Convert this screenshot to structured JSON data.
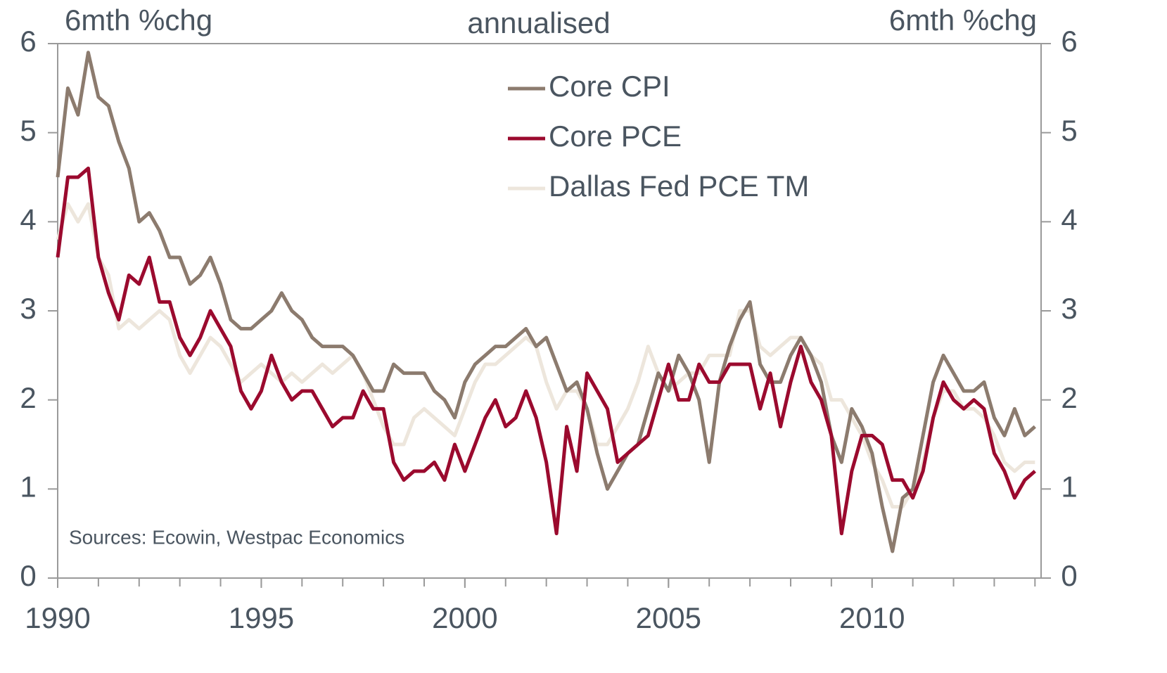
{
  "chart_data": {
    "type": "line",
    "title": "annualised",
    "y_label": "6mth %chg",
    "y2_label": "6mth %chg",
    "annotation": "Sources: Ecowin, Westpac Economics",
    "x": [
      1990,
      1990.25,
      1990.5,
      1990.75,
      1991,
      1991.25,
      1991.5,
      1991.75,
      1992,
      1992.25,
      1992.5,
      1992.75,
      1993,
      1993.25,
      1993.5,
      1993.75,
      1994,
      1994.25,
      1994.5,
      1994.75,
      1995,
      1995.25,
      1995.5,
      1995.75,
      1996,
      1996.25,
      1996.5,
      1996.75,
      1997,
      1997.25,
      1997.5,
      1997.75,
      1998,
      1998.25,
      1998.5,
      1998.75,
      1999,
      1999.25,
      1999.5,
      1999.75,
      2000,
      2000.25,
      2000.5,
      2000.75,
      2001,
      2001.25,
      2001.5,
      2001.75,
      2002,
      2002.25,
      2002.5,
      2002.75,
      2003,
      2003.25,
      2003.5,
      2003.75,
      2004,
      2004.25,
      2004.5,
      2004.75,
      2005,
      2005.25,
      2005.5,
      2005.75,
      2006,
      2006.25,
      2006.5,
      2006.75,
      2007,
      2007.25,
      2007.5,
      2007.75,
      2008,
      2008.25,
      2008.5,
      2008.75,
      2009,
      2009.25,
      2009.5,
      2009.75,
      2010,
      2010.25,
      2010.5,
      2010.75,
      2011,
      2011.25,
      2011.5,
      2011.75,
      2012,
      2012.25,
      2012.5,
      2012.75,
      2013,
      2013.25,
      2013.5,
      2013.75,
      2014
    ],
    "series": [
      {
        "name": "Core CPI",
        "color": "#8c7b6e",
        "values": [
          4.5,
          5.5,
          5.2,
          5.9,
          5.4,
          5.3,
          4.9,
          4.6,
          4.0,
          4.1,
          3.9,
          3.6,
          3.6,
          3.3,
          3.4,
          3.6,
          3.3,
          2.9,
          2.8,
          2.8,
          2.9,
          3.0,
          3.2,
          3.0,
          2.9,
          2.7,
          2.6,
          2.6,
          2.6,
          2.5,
          2.3,
          2.1,
          2.1,
          2.4,
          2.3,
          2.3,
          2.3,
          2.1,
          2.0,
          1.8,
          2.2,
          2.4,
          2.5,
          2.6,
          2.6,
          2.7,
          2.8,
          2.6,
          2.7,
          2.4,
          2.1,
          2.2,
          1.9,
          1.4,
          1.0,
          1.2,
          1.4,
          1.5,
          1.9,
          2.3,
          2.1,
          2.5,
          2.3,
          2.0,
          1.3,
          2.2,
          2.6,
          2.9,
          3.1,
          2.4,
          2.2,
          2.2,
          2.5,
          2.7,
          2.5,
          2.2,
          1.6,
          1.3,
          1.9,
          1.7,
          1.4,
          0.8,
          0.3,
          0.9,
          1.0,
          1.6,
          2.2,
          2.5,
          2.3,
          2.1,
          2.1,
          2.2,
          1.8,
          1.6,
          1.9,
          1.6,
          1.7
        ]
      },
      {
        "name": "Core PCE",
        "color": "#9b0a2e",
        "values": [
          3.6,
          4.5,
          4.5,
          4.6,
          3.6,
          3.2,
          2.9,
          3.4,
          3.3,
          3.6,
          3.1,
          3.1,
          2.7,
          2.5,
          2.7,
          3.0,
          2.8,
          2.6,
          2.1,
          1.9,
          2.1,
          2.5,
          2.2,
          2.0,
          2.1,
          2.1,
          1.9,
          1.7,
          1.8,
          1.8,
          2.1,
          1.9,
          1.9,
          1.3,
          1.1,
          1.2,
          1.2,
          1.3,
          1.1,
          1.5,
          1.2,
          1.5,
          1.8,
          2.0,
          1.7,
          1.8,
          2.1,
          1.8,
          1.3,
          0.5,
          1.7,
          1.2,
          2.3,
          2.1,
          1.9,
          1.3,
          1.4,
          1.5,
          1.6,
          2.0,
          2.4,
          2.0,
          2.0,
          2.4,
          2.2,
          2.2,
          2.4,
          2.4,
          2.4,
          1.9,
          2.3,
          1.7,
          2.2,
          2.6,
          2.2,
          2.0,
          1.6,
          0.5,
          1.2,
          1.6,
          1.6,
          1.5,
          1.1,
          1.1,
          0.9,
          1.2,
          1.8,
          2.2,
          2.0,
          1.9,
          2.0,
          1.9,
          1.4,
          1.2,
          0.9,
          1.1,
          1.2
        ]
      },
      {
        "name": "Dallas Fed PCE TM",
        "color": "#ede6dc",
        "values": [
          3.8,
          4.2,
          4.0,
          4.2,
          3.6,
          3.4,
          2.8,
          2.9,
          2.8,
          2.9,
          3.0,
          2.9,
          2.5,
          2.3,
          2.5,
          2.7,
          2.6,
          2.4,
          2.2,
          2.3,
          2.4,
          2.3,
          2.2,
          2.3,
          2.2,
          2.3,
          2.4,
          2.3,
          2.4,
          2.5,
          2.3,
          2.0,
          1.7,
          1.5,
          1.5,
          1.8,
          1.9,
          1.8,
          1.7,
          1.6,
          1.9,
          2.2,
          2.4,
          2.4,
          2.5,
          2.6,
          2.7,
          2.6,
          2.2,
          1.9,
          2.1,
          2.1,
          1.9,
          1.5,
          1.5,
          1.7,
          1.9,
          2.2,
          2.6,
          2.3,
          2.1,
          2.2,
          2.3,
          2.3,
          2.5,
          2.5,
          2.5,
          3.0,
          3.0,
          2.6,
          2.5,
          2.6,
          2.7,
          2.7,
          2.5,
          2.4,
          2.0,
          2.0,
          1.8,
          1.6,
          1.3,
          1.1,
          0.8,
          0.8,
          1.0,
          1.3,
          1.8,
          2.1,
          2.1,
          1.9,
          1.9,
          1.8,
          1.6,
          1.3,
          1.2,
          1.3,
          1.3
        ]
      }
    ],
    "xlim": [
      1990,
      2014.15
    ],
    "xticks": [
      1990,
      1995,
      2000,
      2005,
      2010
    ],
    "ylim": [
      0,
      6
    ],
    "yticks": [
      0,
      1,
      2,
      3,
      4,
      5,
      6
    ],
    "y2lim": [
      0,
      6
    ],
    "y2ticks": [
      0,
      1,
      2,
      3,
      4,
      5,
      6
    ],
    "legend": "top"
  }
}
